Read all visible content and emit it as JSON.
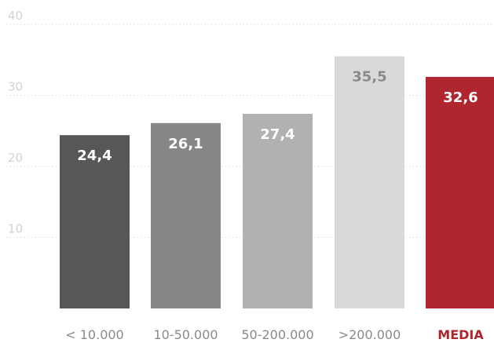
{
  "chart_data": {
    "type": "bar",
    "categories": [
      "< 10.000",
      "10-50.000",
      "50-200.000",
      ">200.000",
      "MEDIA"
    ],
    "values": [
      24.4,
      26.1,
      27.4,
      35.5,
      32.6
    ],
    "value_labels": [
      "24,4",
      "26,1",
      "27,4",
      "35,5",
      "32,6"
    ],
    "bar_colors": [
      "#575755",
      "#878786",
      "#b1b1b1",
      "#d9d9d9",
      "#b0262e"
    ],
    "label_colors": [
      "#ffffff",
      "#ffffff",
      "#ffffff",
      "#8a8a8a",
      "#ffffff"
    ],
    "highlight_category": "MEDIA",
    "highlight_color": "#b0262e",
    "ylim": [
      0,
      40
    ],
    "yticks": [
      10,
      20,
      30,
      40
    ],
    "ytick_labels": [
      "10",
      "20",
      "30",
      "40"
    ],
    "grid": true,
    "title": "",
    "xlabel": "",
    "ylabel": ""
  }
}
